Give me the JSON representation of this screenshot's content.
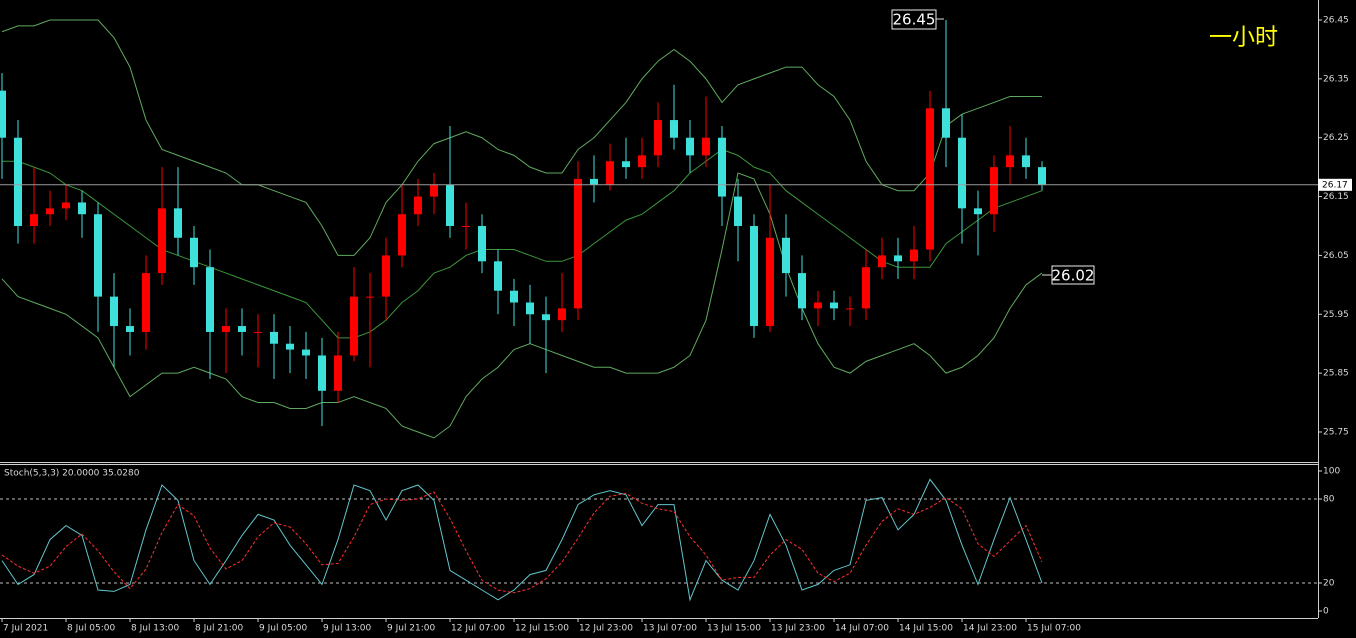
{
  "chart_data": [
    {
      "type": "candlestick",
      "x": [
        "7 Jul 2021",
        null,
        null,
        null,
        "8 Jul 05:00",
        null,
        null,
        null,
        "8 Jul 13:00",
        null,
        null,
        null,
        "8 Jul 21:00",
        null,
        null,
        null,
        "9 Jul 05:00",
        null,
        null,
        null,
        "9 Jul 13:00",
        null,
        null,
        null,
        "9 Jul 21:00",
        null,
        null,
        null,
        "12 Jul 07:00",
        null,
        null,
        null,
        "12 Jul 15:00",
        null,
        null,
        null,
        "12 Jul 23:00",
        null,
        null,
        null,
        "13 Jul 07:00",
        null,
        null,
        null,
        "13 Jul 15:00",
        null,
        null,
        null,
        "13 Jul 23:00",
        null,
        null,
        null,
        "14 Jul 07:00",
        null,
        null,
        null,
        "14 Jul 15:00",
        null,
        null,
        null,
        "14 Jul 23:00",
        null,
        null,
        null,
        "15 Jul 07:00",
        null
      ],
      "open": [
        26.33,
        26.25,
        26.1,
        26.12,
        26.13,
        26.14,
        26.12,
        25.98,
        25.93,
        25.92,
        26.02,
        26.13,
        26.08,
        26.03,
        25.92,
        25.93,
        25.92,
        25.92,
        25.9,
        25.89,
        25.88,
        25.82,
        25.88,
        25.98,
        25.98,
        26.05,
        26.12,
        26.15,
        26.17,
        26.1,
        26.1,
        26.04,
        25.99,
        25.97,
        25.95,
        25.94,
        25.96,
        26.18,
        26.17,
        26.21,
        26.2,
        26.22,
        26.28,
        26.25,
        26.22,
        26.25,
        26.15,
        26.1,
        25.93,
        26.08,
        26.02,
        25.96,
        25.97,
        25.96,
        25.96,
        26.03,
        26.05,
        26.04,
        26.06,
        26.3,
        26.25,
        26.13,
        26.12,
        26.2,
        26.22,
        26.2
      ],
      "high": [
        26.36,
        26.28,
        26.2,
        26.16,
        26.17,
        26.16,
        26.14,
        26.02,
        25.96,
        26.05,
        26.2,
        26.2,
        26.1,
        26.06,
        25.96,
        25.96,
        25.95,
        25.95,
        25.93,
        25.92,
        25.91,
        25.92,
        26.03,
        26.02,
        26.08,
        26.17,
        26.18,
        26.19,
        26.27,
        26.14,
        26.12,
        26.06,
        26.01,
        26.0,
        25.98,
        26.02,
        26.21,
        26.22,
        26.24,
        26.25,
        26.25,
        26.31,
        26.34,
        26.28,
        26.32,
        26.27,
        26.18,
        26.12,
        26.17,
        26.12,
        26.05,
        25.99,
        25.99,
        25.98,
        26.06,
        26.08,
        26.08,
        26.1,
        26.33,
        26.45,
        26.29,
        26.16,
        26.22,
        26.27,
        26.25,
        26.21
      ],
      "low": [
        26.18,
        26.07,
        26.07,
        26.1,
        26.11,
        26.08,
        25.92,
        25.86,
        25.88,
        25.89,
        26.0,
        26.05,
        26.0,
        25.84,
        25.85,
        25.88,
        25.86,
        25.84,
        25.85,
        25.84,
        25.76,
        25.8,
        25.87,
        25.86,
        25.94,
        26.03,
        26.1,
        26.12,
        26.08,
        26.06,
        26.02,
        25.95,
        25.93,
        25.9,
        25.85,
        25.92,
        25.94,
        26.14,
        26.16,
        26.18,
        26.18,
        26.2,
        26.23,
        26.19,
        26.2,
        26.1,
        26.04,
        25.91,
        25.92,
        25.98,
        25.94,
        25.93,
        25.94,
        25.93,
        25.94,
        26.01,
        26.01,
        26.01,
        26.04,
        26.2,
        26.07,
        26.05,
        26.09,
        26.17,
        26.18,
        26.16
      ],
      "close": [
        26.25,
        26.1,
        26.12,
        26.13,
        26.14,
        26.12,
        25.98,
        25.93,
        25.92,
        26.02,
        26.13,
        26.08,
        26.03,
        25.92,
        25.93,
        25.92,
        25.92,
        25.9,
        25.89,
        25.88,
        25.82,
        25.88,
        25.98,
        25.98,
        26.05,
        26.12,
        26.15,
        26.17,
        26.1,
        26.1,
        26.04,
        25.99,
        25.97,
        25.95,
        25.94,
        25.96,
        26.18,
        26.17,
        26.21,
        26.2,
        26.22,
        26.28,
        26.25,
        26.22,
        26.25,
        26.15,
        26.1,
        25.93,
        26.08,
        26.02,
        25.96,
        25.97,
        25.96,
        25.96,
        26.03,
        26.05,
        26.04,
        26.06,
        26.3,
        26.25,
        26.13,
        26.12,
        26.2,
        26.22,
        26.2,
        26.17
      ],
      "up_color": "#ff0000",
      "down_color": "#3ee0dc",
      "series": [
        {
          "color": "#5faa5f",
          "values": [
            26.43,
            26.44,
            26.44,
            26.45,
            26.45,
            26.45,
            26.45,
            26.42,
            26.37,
            26.28,
            26.23,
            26.22,
            26.21,
            26.2,
            26.19,
            26.17,
            26.17,
            26.16,
            26.15,
            26.14,
            26.1,
            26.05,
            26.05,
            26.08,
            26.14,
            26.17,
            26.21,
            26.24,
            26.25,
            26.26,
            26.25,
            26.23,
            26.22,
            26.2,
            26.19,
            26.19,
            26.23,
            26.25,
            26.28,
            26.31,
            26.35,
            26.38,
            26.4,
            26.38,
            26.35,
            26.31,
            26.34,
            26.35,
            26.36,
            26.37,
            26.37,
            26.34,
            26.32,
            26.28,
            26.21,
            26.17,
            26.16,
            26.16,
            26.19,
            26.27,
            26.29,
            26.3,
            26.31,
            26.32,
            26.32,
            26.32
          ]
        },
        {
          "color": "#3c963c",
          "values": [
            26.21,
            26.21,
            26.2,
            26.19,
            26.17,
            26.16,
            26.14,
            26.12,
            26.1,
            26.08,
            26.06,
            26.05,
            26.04,
            26.03,
            26.02,
            26.01,
            26.0,
            25.99,
            25.98,
            25.97,
            25.94,
            25.91,
            25.91,
            25.92,
            25.94,
            25.97,
            25.99,
            26.02,
            26.03,
            26.05,
            26.06,
            26.06,
            26.06,
            26.05,
            26.04,
            26.04,
            26.05,
            26.07,
            26.09,
            26.11,
            26.12,
            26.14,
            26.16,
            26.19,
            26.21,
            26.23,
            26.22,
            26.2,
            26.19,
            26.16,
            26.14,
            26.12,
            26.1,
            26.08,
            26.06,
            26.04,
            26.03,
            26.03,
            26.03,
            26.07,
            26.09,
            26.11,
            26.13,
            26.14,
            26.15,
            26.16
          ]
        },
        {
          "color": "#5faa5f",
          "values": [
            26.01,
            25.98,
            25.97,
            25.96,
            25.95,
            25.93,
            25.91,
            25.86,
            25.81,
            25.83,
            25.85,
            25.85,
            25.86,
            25.85,
            25.84,
            25.81,
            25.8,
            25.8,
            25.79,
            25.79,
            25.8,
            25.8,
            25.81,
            25.8,
            25.79,
            25.76,
            25.75,
            25.74,
            25.76,
            25.81,
            25.84,
            25.86,
            25.89,
            25.9,
            25.89,
            25.88,
            25.87,
            25.86,
            25.86,
            25.85,
            25.85,
            25.85,
            25.86,
            25.88,
            25.94,
            26.06,
            26.19,
            26.18,
            26.12,
            26.03,
            25.96,
            25.9,
            25.86,
            25.85,
            25.87,
            25.88,
            25.89,
            25.9,
            25.88,
            25.85,
            25.86,
            25.88,
            25.91,
            25.96,
            26.0,
            26.02
          ]
        }
      ],
      "ylim": [
        25.699,
        26.484
      ],
      "yticks": [
        26.45,
        26.35,
        26.25,
        26.15,
        26.05,
        25.95,
        25.85,
        25.75
      ],
      "current_price": 26.17,
      "annotations": [
        {
          "text": "26.45"
        },
        {
          "text": "26.02"
        },
        {
          "text": "一小时"
        }
      ]
    },
    {
      "type": "line",
      "title": "Stoch(5,3,3) 20.0000 35.0280",
      "series": [
        {
          "color": "#62c6cc",
          "values": [
            36,
            19,
            26,
            51,
            61,
            54,
            15,
            14,
            19,
            58,
            90,
            79,
            36,
            19,
            36,
            54,
            69,
            65,
            47,
            33,
            19,
            51,
            90,
            86,
            65,
            86,
            90,
            79,
            29,
            22,
            15,
            8,
            15,
            26,
            29,
            51,
            76,
            83,
            86,
            83,
            61,
            76,
            76,
            8,
            36,
            22,
            15,
            36,
            69,
            47,
            15,
            19,
            29,
            33,
            79,
            81,
            58,
            69,
            94,
            79,
            47,
            19,
            51,
            81,
            51,
            20
          ]
        },
        {
          "color": "#ff3030",
          "dashed": true,
          "values": [
            40,
            32,
            27,
            32,
            46,
            55,
            43,
            28,
            16,
            30,
            56,
            76,
            68,
            45,
            30,
            36,
            53,
            63,
            60,
            48,
            33,
            34,
            53,
            76,
            80,
            79,
            80,
            85,
            66,
            43,
            22,
            15,
            13,
            16,
            23,
            35,
            52,
            70,
            82,
            84,
            77,
            73,
            71,
            53,
            40,
            22,
            24,
            24,
            40,
            51,
            44,
            27,
            21,
            27,
            47,
            64,
            73,
            69,
            74,
            81,
            73,
            48,
            39,
            50,
            61,
            35.028
          ]
        }
      ],
      "ylim": [
        -5,
        105
      ],
      "yticks": [
        100,
        80,
        20,
        0
      ],
      "levels": [
        80,
        20
      ]
    }
  ]
}
